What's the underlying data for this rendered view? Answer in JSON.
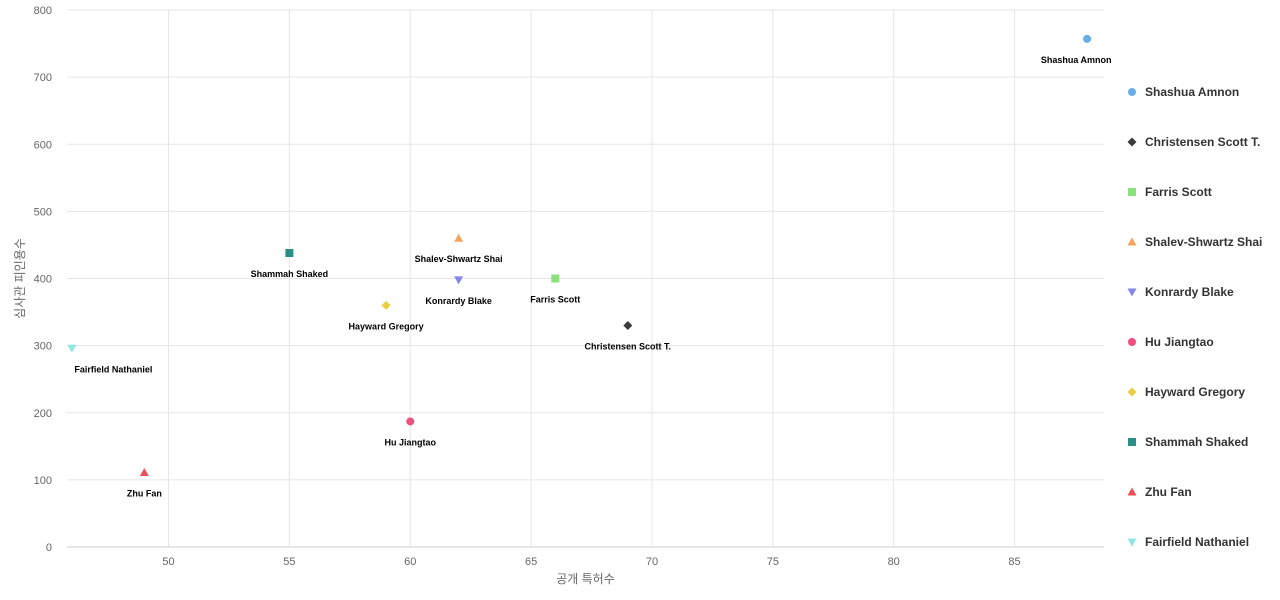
{
  "chart_data": {
    "type": "scatter",
    "xlabel": "공개 특허수",
    "ylabel": "심사관 피인용수",
    "xlim": [
      45.8,
      88.7
    ],
    "ylim": [
      0,
      800
    ],
    "x_ticks": [
      50,
      55,
      60,
      65,
      70,
      75,
      80,
      85
    ],
    "y_ticks": [
      0,
      100,
      200,
      300,
      400,
      500,
      600,
      700,
      800
    ],
    "grid": true,
    "legend_position": "right",
    "series": [
      {
        "name": "Shashua Amnon",
        "x": 88,
        "y": 757,
        "marker": "circle",
        "color": "#6aaee8"
      },
      {
        "name": "Christensen Scott T.",
        "x": 69,
        "y": 330,
        "marker": "diamond",
        "color": "#3a3a3a"
      },
      {
        "name": "Farris Scott",
        "x": 66,
        "y": 400,
        "marker": "square",
        "color": "#8ee07c"
      },
      {
        "name": "Shalev-Shwartz Shai",
        "x": 62,
        "y": 460,
        "marker": "triangle-up",
        "color": "#f6a35c"
      },
      {
        "name": "Konrardy Blake",
        "x": 62,
        "y": 398,
        "marker": "triangle-down",
        "color": "#8086ee"
      },
      {
        "name": "Hu Jiangtao",
        "x": 60,
        "y": 187,
        "marker": "circle",
        "color": "#ee4f7c"
      },
      {
        "name": "Hayward Gregory",
        "x": 59,
        "y": 360,
        "marker": "diamond",
        "color": "#e8cf40"
      },
      {
        "name": "Shammah Shaked",
        "x": 55,
        "y": 438,
        "marker": "square",
        "color": "#2b8f86"
      },
      {
        "name": "Zhu Fan",
        "x": 49,
        "y": 111,
        "marker": "triangle-up",
        "color": "#ee4f57"
      },
      {
        "name": "Fairfield Nathaniel",
        "x": 46,
        "y": 296,
        "marker": "triangle-down",
        "color": "#8ee8e2"
      }
    ]
  }
}
